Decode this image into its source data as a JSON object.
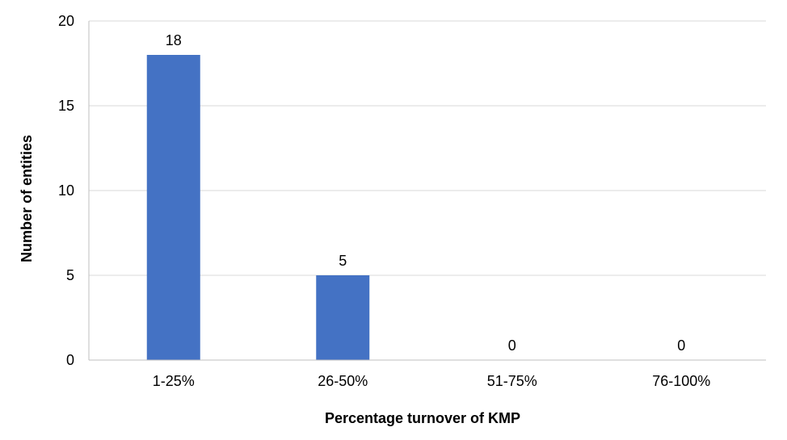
{
  "chart_data": {
    "type": "bar",
    "title": "",
    "xlabel": "Percentage turnover of KMP",
    "ylabel": "Number of entities",
    "categories": [
      "1-25%",
      "26-50%",
      "51-75%",
      "76-100%"
    ],
    "values": [
      18,
      5,
      0,
      0
    ],
    "data_labels": [
      "18",
      "5",
      "0",
      "0"
    ],
    "ylim": [
      0,
      20
    ],
    "yticks": [
      0,
      5,
      10,
      15,
      20
    ],
    "ytick_labels": [
      "0",
      "5",
      "10",
      "15",
      "20"
    ],
    "grid": true,
    "legend": "none",
    "colors": {
      "bar": "#4472C4",
      "grid": "#D9D9D9",
      "axis": "#BFBFBF"
    }
  }
}
